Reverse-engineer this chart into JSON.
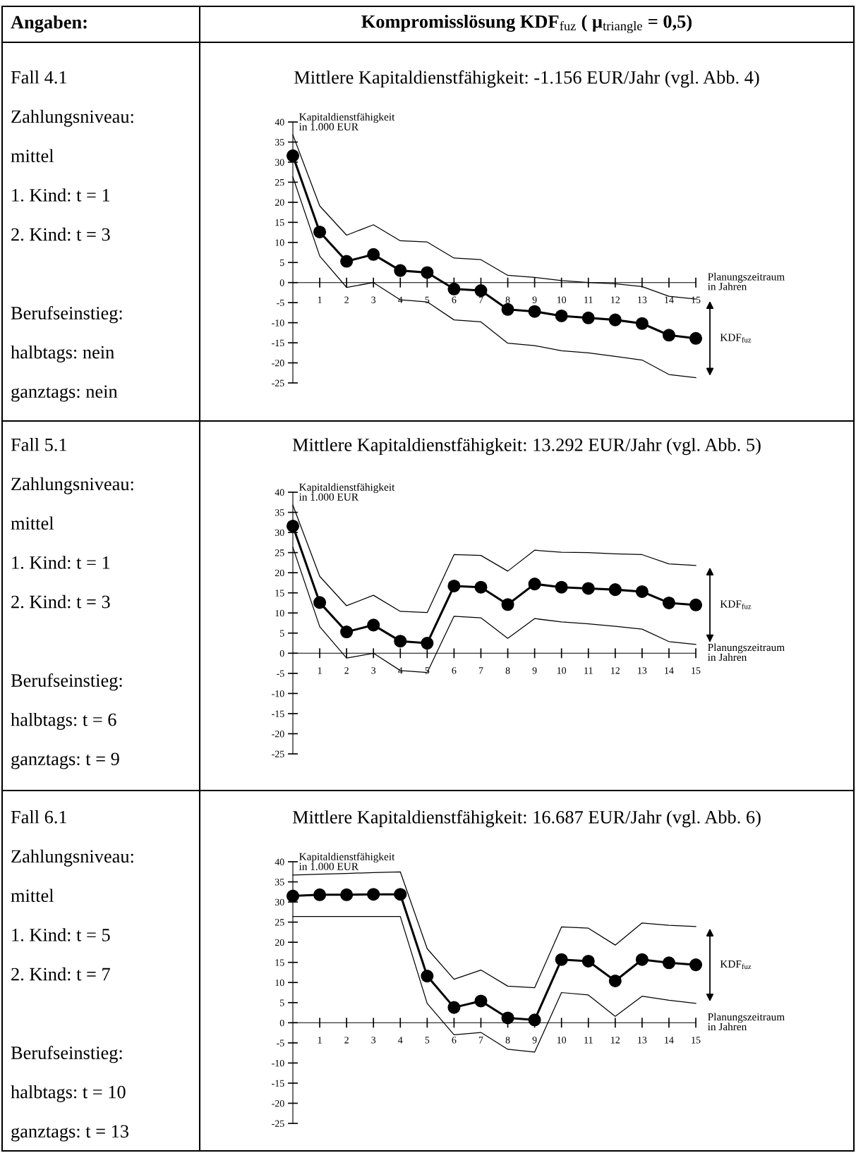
{
  "chart_data": [
    {
      "type": "line",
      "title": "Mittlere Kapitaldienstfähigkeit: -1.156 EUR/Jahr (vgl. Abb. 4)",
      "xlabel": "Planungszeitraum\nin Jahren",
      "ylabel": "Kapitaldienstfähigkeit\nin 1.000 EUR",
      "annotations": [
        "Angaben:",
        "Kompromisslösung KDF$_{fuz}$ ( μ$_{triangle}$ = 0,5)",
        "Fall 4.1",
        "Zahlungsniveau:",
        "mittel",
        "1. Kind: t = 1",
        "2. Kind: t = 3",
        "Berufseinstieg:",
        "halbtags: nein",
        "ganztags: nein",
        "KDF$_{fuz}$"
      ],
      "x": [
        0,
        1,
        2,
        3,
        4,
        5,
        6,
        7,
        8,
        9,
        10,
        11,
        12,
        13,
        14,
        15
      ],
      "series": [
        {
          "color": "#000000",
          "values": [
            31.6,
            12.6,
            5.3,
            7.0,
            3.0,
            2.5,
            -1.6,
            -2.0,
            -6.7,
            -7.2,
            -8.3,
            -8.8,
            -9.3,
            -10.2,
            -13.1,
            -13.9
          ]
        },
        {
          "color": "#000000",
          "marker": "none",
          "values": [
            36.8,
            19.1,
            11.8,
            14.4,
            10.4,
            10.1,
            6.1,
            5.7,
            1.8,
            1.3,
            0.5,
            0.0,
            -0.3,
            -1.0,
            -3.4,
            -4.1
          ]
        },
        {
          "color": "#000000",
          "marker": "none",
          "values": [
            26.3,
            6.6,
            -1.2,
            0.0,
            -4.3,
            -4.8,
            -9.3,
            -9.8,
            -15.1,
            -15.7,
            -17.0,
            -17.5,
            -18.4,
            -19.3,
            -22.9,
            -23.7
          ]
        }
      ],
      "xlim": [
        0,
        15
      ],
      "ylim": [
        -25,
        40
      ],
      "xticks": [
        1,
        2,
        3,
        4,
        5,
        6,
        7,
        8,
        9,
        10,
        11,
        12,
        13,
        14,
        15
      ],
      "yticks": [
        {
          "value": -25,
          "label": "-25"
        },
        {
          "value": -20,
          "label": "-20"
        },
        {
          "value": -15,
          "label": "-15"
        },
        {
          "value": -10,
          "label": "-10"
        },
        {
          "value": -5,
          "label": "-5"
        },
        0,
        5,
        10,
        15,
        20,
        25,
        30,
        35,
        40
      ],
      "marker": "circle",
      "line_style": "solid"
    },
    {
      "type": "line",
      "title": "Mittlere Kapitaldienstfähigkeit: 13.292 EUR/Jahr (vgl. Abb. 5)",
      "xlabel": "Planungszeitraum\nin Jahren",
      "ylabel": "Kapitaldienstfähigkeit\nin 1.000 EUR",
      "annotations": [
        "Fall 5.1",
        "Zahlungsniveau:",
        "mittel",
        "1. Kind: t = 1",
        "2. Kind: t = 3",
        "Berufseinstieg:",
        "halbtags: t = 6",
        "ganztags: t = 9",
        "KDF$_{fuz}$"
      ],
      "x": [
        0,
        1,
        2,
        3,
        4,
        5,
        6,
        7,
        8,
        9,
        10,
        11,
        12,
        13,
        14,
        15
      ],
      "series": [
        {
          "color": "#000000",
          "values": [
            31.6,
            12.6,
            5.3,
            7.0,
            3.0,
            2.5,
            16.7,
            16.4,
            12.1,
            17.2,
            16.4,
            16.1,
            15.8,
            15.3,
            12.5,
            12.0
          ]
        },
        {
          "color": "#000000",
          "marker": "none",
          "values": [
            36.8,
            19.1,
            11.8,
            14.4,
            10.4,
            10.1,
            24.5,
            24.3,
            20.4,
            25.6,
            25.1,
            25.0,
            24.7,
            24.5,
            22.2,
            21.8
          ]
        },
        {
          "color": "#000000",
          "marker": "none",
          "values": [
            26.3,
            6.6,
            -1.2,
            0.0,
            -4.3,
            -4.8,
            9.2,
            8.8,
            3.7,
            8.6,
            7.8,
            7.3,
            6.7,
            6.0,
            2.9,
            2.2
          ]
        }
      ],
      "xlim": [
        0,
        15
      ],
      "ylim": [
        -25,
        40
      ],
      "xticks": [
        1,
        2,
        3,
        4,
        5,
        6,
        7,
        8,
        9,
        10,
        11,
        12,
        13,
        14,
        15
      ],
      "yticks": [
        {
          "value": -25,
          "label": "-25"
        },
        {
          "value": -20,
          "label": "-20"
        },
        {
          "value": -15,
          "label": "-15"
        },
        {
          "value": -10,
          "label": "-10"
        },
        {
          "value": -5,
          "label": "-5"
        },
        0,
        5,
        10,
        15,
        20,
        25,
        30,
        35,
        40
      ],
      "marker": "circle",
      "line_style": "solid"
    },
    {
      "type": "line",
      "title": "Mittlere Kapitaldienstfähigkeit: 16.687 EUR/Jahr (vgl. Abb. 6)",
      "xlabel": "Planungszeitraum\nin Jahren",
      "ylabel": "Kapitaldienstfähigkeit\nin 1.000 EUR",
      "annotations": [
        "Fall 6.1",
        "Zahlungsniveau:",
        "mittel",
        "1. Kind: t = 5",
        "2. Kind: t = 7",
        "Berufseinstieg:",
        "halbtags: t = 10",
        "ganztags: t = 13",
        "KDF$_{fuz}$"
      ],
      "x": [
        0,
        1,
        2,
        3,
        4,
        5,
        6,
        7,
        8,
        9,
        10,
        11,
        12,
        13,
        14,
        15
      ],
      "series": [
        {
          "color": "#000000",
          "values": [
            31.5,
            31.8,
            31.8,
            31.9,
            31.9,
            11.6,
            3.8,
            5.4,
            1.2,
            0.7,
            15.7,
            15.3,
            10.4,
            15.7,
            14.9,
            14.4
          ]
        },
        {
          "color": "#000000",
          "marker": "none",
          "values": [
            36.7,
            36.9,
            37.1,
            37.3,
            37.5,
            18.4,
            10.8,
            13.1,
            9.1,
            8.7,
            23.8,
            23.5,
            19.3,
            24.8,
            24.2,
            23.9
          ]
        },
        {
          "color": "#000000",
          "marker": "none",
          "values": [
            26.4,
            26.4,
            26.4,
            26.4,
            26.4,
            4.8,
            -3.0,
            -2.4,
            -6.6,
            -7.3,
            7.5,
            6.9,
            1.6,
            6.6,
            5.6,
            4.8
          ]
        }
      ],
      "xlim": [
        0,
        15
      ],
      "ylim": [
        -25,
        40
      ],
      "xticks": [
        1,
        2,
        3,
        4,
        5,
        6,
        7,
        8,
        9,
        10,
        11,
        12,
        13,
        14,
        15
      ],
      "yticks": [
        {
          "value": -25,
          "label": "-25"
        },
        {
          "value": -20,
          "label": "-20"
        },
        {
          "value": -15,
          "label": "-15"
        },
        {
          "value": -10,
          "label": "-10"
        },
        {
          "value": -5,
          "label": "-5"
        },
        0,
        5,
        10,
        15,
        20,
        25,
        30,
        35,
        40
      ],
      "marker": "circle",
      "line_style": "solid"
    }
  ]
}
